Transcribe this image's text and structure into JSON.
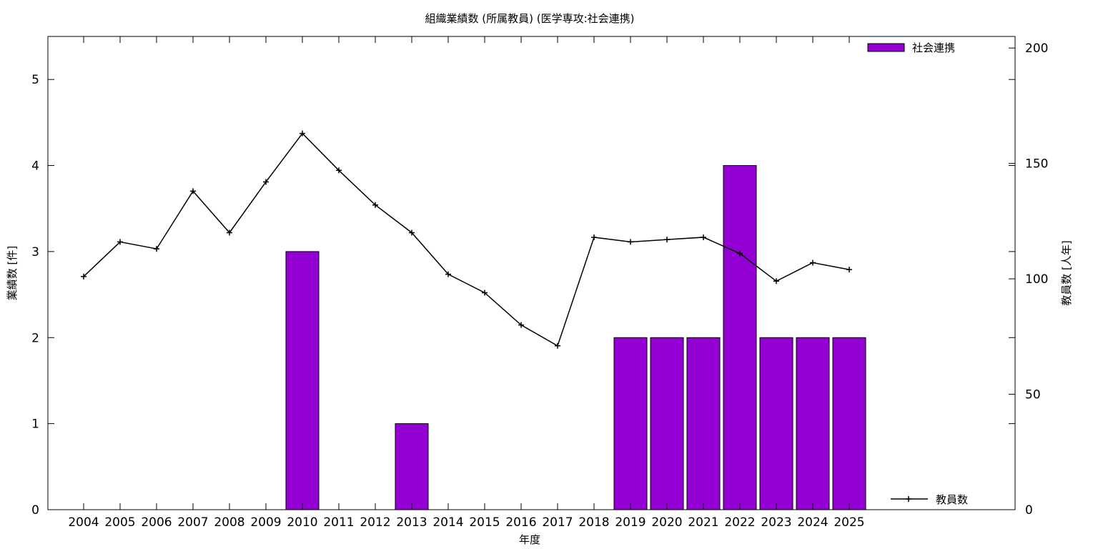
{
  "chart_data": {
    "type": "bar",
    "title": "組織業績数 (所属教員) (医学専攻:社会連携)",
    "xlabel": "年度",
    "ylabel": "業績数 [件]",
    "y2label": "教員数 [人年]",
    "categories": [
      "2004",
      "2005",
      "2006",
      "2007",
      "2008",
      "2009",
      "2010",
      "2011",
      "2012",
      "2013",
      "2014",
      "2015",
      "2016",
      "2017",
      "2018",
      "2019",
      "2020",
      "2021",
      "2022",
      "2023",
      "2024",
      "2025"
    ],
    "ylim": [
      0,
      5.5
    ],
    "y2lim": [
      0,
      205
    ],
    "yticks": [
      0,
      1,
      2,
      3,
      4,
      5
    ],
    "y2ticks": [
      0,
      50,
      100,
      150,
      200
    ],
    "grid": false,
    "series": [
      {
        "name": "社会連携",
        "kind": "bar",
        "axis": "left",
        "color": "#9400d3",
        "values": [
          0,
          0,
          0,
          0,
          0,
          0,
          3,
          0,
          0,
          1,
          0,
          0,
          0,
          0,
          0,
          2,
          2,
          2,
          4,
          2,
          2,
          2
        ]
      },
      {
        "name": "教員数",
        "kind": "line",
        "axis": "right",
        "color": "#000000",
        "values": [
          101,
          116,
          113,
          138,
          120,
          142,
          163,
          147,
          132,
          120,
          102,
          94,
          80,
          71,
          118,
          116,
          117,
          118,
          111,
          99,
          107,
          104
        ]
      }
    ],
    "legend": {
      "bar_position": "top-right",
      "line_position": "bottom-right"
    }
  }
}
